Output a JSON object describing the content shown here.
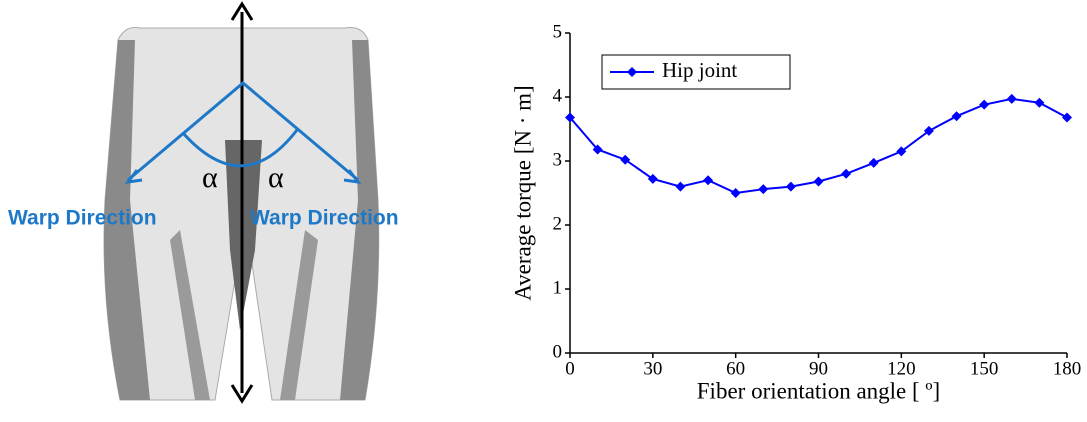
{
  "illustration": {
    "alpha_left": "α",
    "alpha_right": "α",
    "warp_left": "Warp Direction",
    "warp_right": "Warp Direction"
  },
  "chart_data": {
    "type": "line",
    "x_label": "Fiber orientation angle [ º]",
    "y_label": "Average torque [N · m]",
    "x": [
      0,
      10,
      20,
      30,
      40,
      50,
      60,
      70,
      80,
      90,
      100,
      110,
      120,
      130,
      140,
      150,
      160,
      170,
      180
    ],
    "series": [
      {
        "name": "Hip joint",
        "color": "#0000ff",
        "values": [
          3.68,
          3.18,
          3.02,
          2.72,
          2.6,
          2.7,
          2.5,
          2.56,
          2.6,
          2.68,
          2.8,
          2.97,
          3.15,
          3.47,
          3.7,
          3.88,
          3.97,
          3.91,
          3.68
        ]
      }
    ],
    "xlim": [
      0,
      180
    ],
    "xticks": [
      0,
      30,
      60,
      90,
      120,
      150,
      180
    ],
    "ylim": [
      0,
      5
    ],
    "yticks": [
      0,
      1,
      2,
      3,
      4,
      5
    ],
    "legend": "upper-left",
    "grid": false
  }
}
